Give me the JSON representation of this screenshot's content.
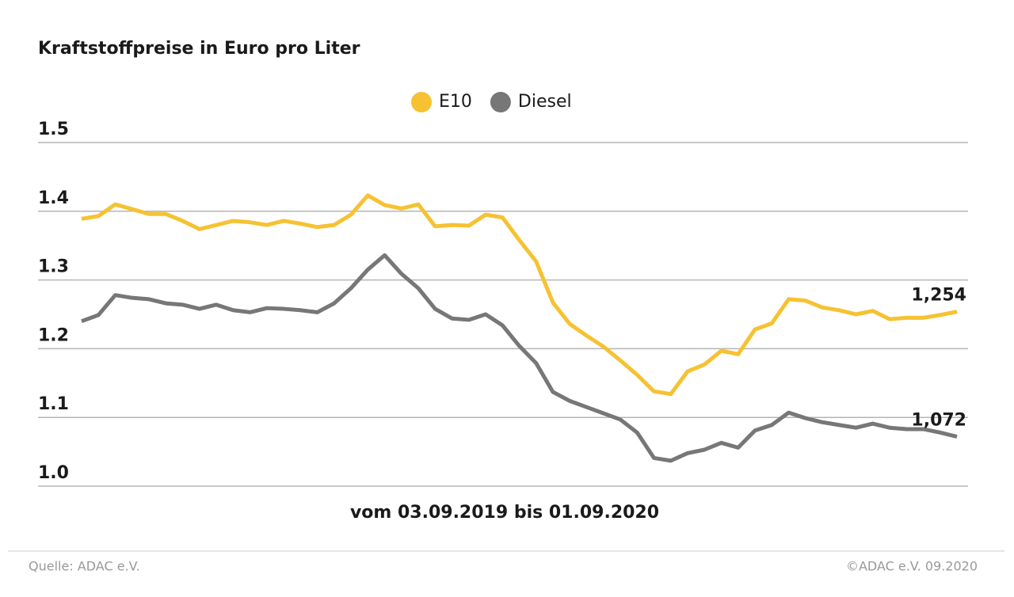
{
  "chart_data": {
    "type": "line",
    "title": "Kraftstoffpreise in Euro pro Liter",
    "x_label": "vom 03.09.2019 bis 01.09.2020",
    "source": "Quelle: ADAC e.V.",
    "copyright": "©ADAC e.V. 09.2020",
    "ylim": [
      1.0,
      1.5
    ],
    "yticks": [
      {
        "value": 1,
        "label": "1.0"
      },
      1.1,
      1.2,
      1.3,
      1.4,
      1.5
    ],
    "grid": true,
    "legend": "top",
    "series": [
      {
        "name": "E10",
        "color": "#f6c232",
        "values": [
          1.389,
          1.393,
          1.41,
          1.403,
          1.396,
          1.396,
          1.386,
          1.374,
          1.38,
          1.386,
          1.384,
          1.38,
          1.386,
          1.382,
          1.377,
          1.38,
          1.395,
          1.423,
          1.409,
          1.404,
          1.41,
          1.378,
          1.38,
          1.379,
          1.395,
          1.391,
          1.358,
          1.327,
          1.267,
          1.236,
          1.219,
          1.203,
          1.183,
          1.162,
          1.138,
          1.134,
          1.167,
          1.177,
          1.197,
          1.192,
          1.228,
          1.237,
          1.272,
          1.27,
          1.26,
          1.256,
          1.25,
          1.255,
          1.243,
          1.245,
          1.245,
          1.249,
          1.254
        ],
        "value_labels": [
          null,
          null,
          null,
          null,
          null,
          null,
          null,
          null,
          null,
          null,
          null,
          null,
          null,
          null,
          null,
          null,
          null,
          null,
          null,
          null,
          null,
          null,
          null,
          null,
          null,
          null,
          null,
          null,
          null,
          null,
          null,
          null,
          null,
          null,
          null,
          null,
          null,
          null,
          null,
          null,
          null,
          null,
          null,
          null,
          null,
          null,
          null,
          null,
          null,
          null,
          null,
          null,
          "1,254"
        ]
      },
      {
        "name": "Diesel",
        "color": "#777777",
        "values": [
          1.24,
          1.249,
          1.278,
          1.274,
          1.272,
          1.266,
          1.264,
          1.258,
          1.264,
          1.256,
          1.253,
          1.259,
          1.258,
          1.256,
          1.253,
          1.266,
          1.288,
          1.315,
          1.336,
          1.309,
          1.288,
          1.258,
          1.244,
          1.242,
          1.25,
          1.234,
          1.204,
          1.179,
          1.137,
          1.124,
          1.115,
          1.106,
          1.097,
          1.078,
          1.041,
          1.037,
          1.048,
          1.053,
          1.063,
          1.056,
          1.081,
          1.089,
          1.107,
          1.099,
          1.093,
          1.089,
          1.085,
          1.091,
          1.085,
          1.083,
          1.083,
          1.078,
          1.072
        ],
        "value_labels": [
          null,
          null,
          null,
          null,
          null,
          null,
          null,
          null,
          null,
          null,
          null,
          null,
          null,
          null,
          null,
          null,
          null,
          null,
          null,
          null,
          null,
          null,
          null,
          null,
          null,
          null,
          null,
          null,
          null,
          null,
          null,
          null,
          null,
          null,
          null,
          null,
          null,
          null,
          null,
          null,
          null,
          null,
          null,
          null,
          null,
          null,
          null,
          null,
          null,
          null,
          null,
          null,
          "1,072"
        ]
      }
    ]
  }
}
